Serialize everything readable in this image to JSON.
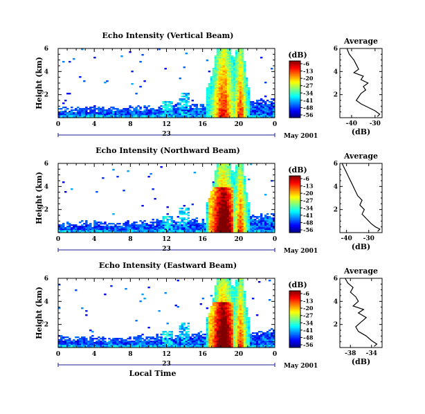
{
  "chart_data": [
    {
      "type": "heatmap",
      "title": "Echo Intensity (Vertical Beam)",
      "ylabel": "Height (km)",
      "xlabel": "",
      "x_ticks": [
        "0",
        "4",
        "8",
        "12",
        "16",
        "20",
        "0"
      ],
      "y_ticks": [
        "6",
        "4",
        "2"
      ],
      "xlim": [
        0,
        24
      ],
      "ylim": [
        0,
        6
      ],
      "date_day": "23",
      "date_label": "May 2001",
      "colorbar": {
        "unit": "(dB)",
        "ticks": [
          "-6",
          "-13",
          "-20",
          "-27",
          "-34",
          "-41",
          "-48",
          "-56"
        ]
      },
      "average_profile": {
        "title": "Average",
        "xlabel": "(dB)",
        "x_ticks": [
          "-40",
          "-30"
        ],
        "y_ticks": [
          "6",
          "4",
          "2"
        ],
        "xlim": [
          -45,
          -27
        ],
        "points": [
          [
            -42,
            6.0
          ],
          [
            -41,
            5.5
          ],
          [
            -39,
            5.0
          ],
          [
            -38,
            4.6
          ],
          [
            -37,
            4.2
          ],
          [
            -39,
            3.9
          ],
          [
            -35,
            3.6
          ],
          [
            -36,
            3.3
          ],
          [
            -33,
            3.0
          ],
          [
            -35,
            2.7
          ],
          [
            -34,
            2.4
          ],
          [
            -36,
            2.1
          ],
          [
            -37,
            1.8
          ],
          [
            -38,
            1.5
          ],
          [
            -36,
            1.2
          ],
          [
            -33,
            0.9
          ],
          [
            -30,
            0.6
          ],
          [
            -28,
            0.3
          ],
          [
            -29,
            0.1
          ]
        ]
      }
    },
    {
      "type": "heatmap",
      "title": "Echo Intensity (Northward Beam)",
      "ylabel": "Height (km)",
      "xlabel": "",
      "x_ticks": [
        "0",
        "4",
        "8",
        "12",
        "16",
        "20",
        "0"
      ],
      "y_ticks": [
        "6",
        "4",
        "2"
      ],
      "xlim": [
        0,
        24
      ],
      "ylim": [
        0,
        6
      ],
      "date_day": "23",
      "date_label": "May 2001",
      "colorbar": {
        "unit": "(dB)",
        "ticks": [
          "-6",
          "-13",
          "-20",
          "-27",
          "-34",
          "-41",
          "-48",
          "-56"
        ]
      },
      "average_profile": {
        "title": "Average",
        "xlabel": "(dB)",
        "x_ticks": [
          "-40",
          "-30"
        ],
        "y_ticks": [
          "6",
          "4",
          "2"
        ],
        "xlim": [
          -43,
          -24
        ],
        "points": [
          [
            -42,
            6.0
          ],
          [
            -41,
            5.6
          ],
          [
            -40,
            5.2
          ],
          [
            -39,
            4.8
          ],
          [
            -38,
            4.4
          ],
          [
            -37,
            4.0
          ],
          [
            -36,
            3.6
          ],
          [
            -35,
            3.2
          ],
          [
            -33,
            2.8
          ],
          [
            -34,
            2.4
          ],
          [
            -32,
            2.0
          ],
          [
            -33,
            1.6
          ],
          [
            -31,
            1.2
          ],
          [
            -29,
            0.8
          ],
          [
            -27,
            0.5
          ],
          [
            -25,
            0.3
          ],
          [
            -26,
            0.1
          ]
        ]
      }
    },
    {
      "type": "heatmap",
      "title": "Echo Intensity (Eastward Beam)",
      "ylabel": "Height (km)",
      "xlabel": "Local Time",
      "x_ticks": [
        "0",
        "4",
        "8",
        "12",
        "16",
        "20",
        "0"
      ],
      "y_ticks": [
        "6",
        "4",
        "2"
      ],
      "xlim": [
        0,
        24
      ],
      "ylim": [
        0,
        6
      ],
      "date_day": "23",
      "date_label": "May 2001",
      "colorbar": {
        "unit": "(dB)",
        "ticks": [
          "-6",
          "-13",
          "-20",
          "-27",
          "-34",
          "-41",
          "-48",
          "-56"
        ]
      },
      "average_profile": {
        "title": "Average",
        "xlabel": "(dB)",
        "x_ticks": [
          "-38",
          "-34"
        ],
        "y_ticks": [
          "6",
          "4",
          "2"
        ],
        "xlim": [
          -40,
          -32
        ],
        "points": [
          [
            -39,
            6.0
          ],
          [
            -38.5,
            5.6
          ],
          [
            -37.5,
            5.2
          ],
          [
            -38,
            4.8
          ],
          [
            -37,
            4.4
          ],
          [
            -36.5,
            4.0
          ],
          [
            -37.5,
            3.6
          ],
          [
            -35.5,
            3.3
          ],
          [
            -36.5,
            3.0
          ],
          [
            -35,
            2.6
          ],
          [
            -36,
            2.2
          ],
          [
            -37,
            1.8
          ],
          [
            -36.5,
            1.4
          ],
          [
            -35,
            1.0
          ],
          [
            -34,
            0.6
          ],
          [
            -33,
            0.3
          ],
          [
            -33.5,
            0.1
          ]
        ]
      }
    }
  ]
}
